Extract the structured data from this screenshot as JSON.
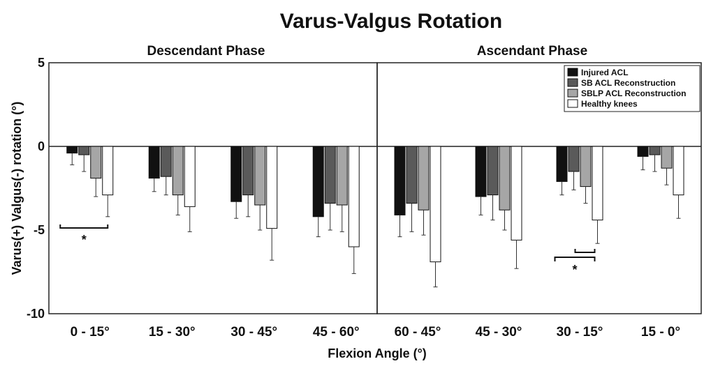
{
  "chart_data": {
    "type": "bar",
    "title": "Varus-Valgus Rotation",
    "xlabel": "Flexion Angle (°)",
    "ylabel": "Varus(+) Valgus(-)  rotation (°)",
    "ylim": [
      -10,
      5
    ],
    "yticks": [
      "5",
      "0",
      "-5",
      "-10"
    ],
    "legend_position": "top-right",
    "series_colors": [
      "#111111",
      "#5a5a5a",
      "#a6a6a6",
      "#ffffff"
    ],
    "panels": [
      {
        "title": "Descendant Phase",
        "categories": [
          "0 - 15°",
          "15 - 30°",
          "30 - 45°",
          "45 - 60°"
        ],
        "series": [
          {
            "name": "Injured ACL",
            "values": [
              -0.4,
              -1.9,
              -3.3,
              -4.2
            ],
            "errors": [
              0.7,
              0.8,
              1.0,
              1.2
            ]
          },
          {
            "name": "SB ACL Reconstruction",
            "values": [
              -0.5,
              -1.8,
              -2.9,
              -3.4
            ],
            "errors": [
              1.0,
              1.1,
              1.3,
              1.6
            ]
          },
          {
            "name": "SBLP ACL Reconstruction",
            "values": [
              -1.9,
              -2.9,
              -3.5,
              -3.5
            ],
            "errors": [
              1.1,
              1.2,
              1.5,
              1.6
            ]
          },
          {
            "name": "Healthy knees",
            "values": [
              -2.9,
              -3.6,
              -4.9,
              -6.0
            ],
            "errors": [
              1.3,
              1.5,
              1.9,
              1.6
            ]
          }
        ],
        "annotations": [
          {
            "text": "*",
            "category": "0 - 15°"
          }
        ]
      },
      {
        "title": "Ascendant Phase",
        "categories": [
          "60 - 45°",
          "45 - 30°",
          "30 - 15°",
          "15 - 0°"
        ],
        "series": [
          {
            "name": "Injured ACL",
            "values": [
              -4.1,
              -3.0,
              -2.1,
              -0.6
            ],
            "errors": [
              1.3,
              1.1,
              0.8,
              0.8
            ]
          },
          {
            "name": "SB ACL Reconstruction",
            "values": [
              -3.4,
              -2.9,
              -1.5,
              -0.5
            ],
            "errors": [
              1.7,
              1.5,
              1.1,
              1.0
            ]
          },
          {
            "name": "SBLP ACL Reconstruction",
            "values": [
              -3.8,
              -3.8,
              -2.4,
              -1.3
            ],
            "errors": [
              1.5,
              1.2,
              1.0,
              1.0
            ]
          },
          {
            "name": "Healthy knees",
            "values": [
              -6.9,
              -5.6,
              -4.4,
              -2.9
            ],
            "errors": [
              1.5,
              1.7,
              1.4,
              1.4
            ]
          }
        ],
        "annotations": [
          {
            "text": "*",
            "category": "30 - 15°"
          }
        ]
      }
    ]
  }
}
